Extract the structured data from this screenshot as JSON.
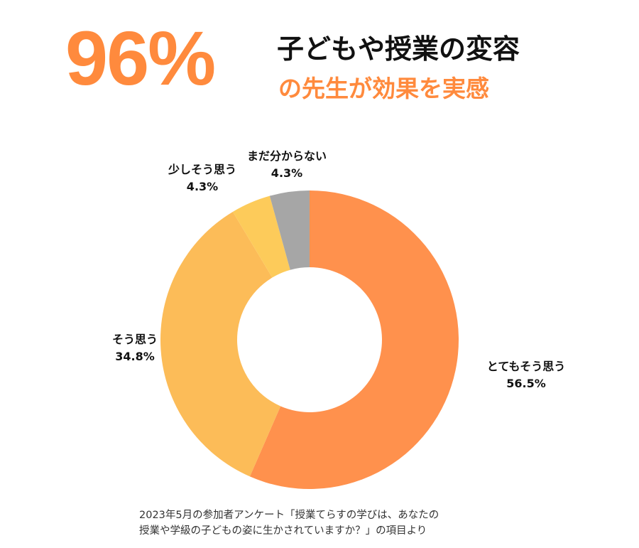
{
  "headline": {
    "big_percent": "96%",
    "line1": "子どもや授業の変容",
    "line2": "の先生が効果を実感"
  },
  "colors": {
    "accent": "#FF8A3D",
    "title_dark": "#111111"
  },
  "chart_data": {
    "type": "pie",
    "style": "donut",
    "categories": [
      "とてもそう思う",
      "そう思う",
      "少しそう思う",
      "まだ分からない"
    ],
    "values": [
      56.5,
      34.8,
      4.3,
      4.3
    ],
    "value_labels": [
      "56.5%",
      "34.8%",
      "4.3%",
      "4.3%"
    ],
    "colors": [
      "#FF914D",
      "#FCBC58",
      "#FDCB5A",
      "#A6A6A6"
    ],
    "start_angle_deg": 0,
    "direction": "clockwise",
    "legend": "none"
  },
  "footnote": {
    "line1": "2023年5月の参加者アンケート「授業てらすの学びは、あなたの",
    "line2": "授業や学級の子どもの姿に生かされていますか？」の項目より"
  }
}
